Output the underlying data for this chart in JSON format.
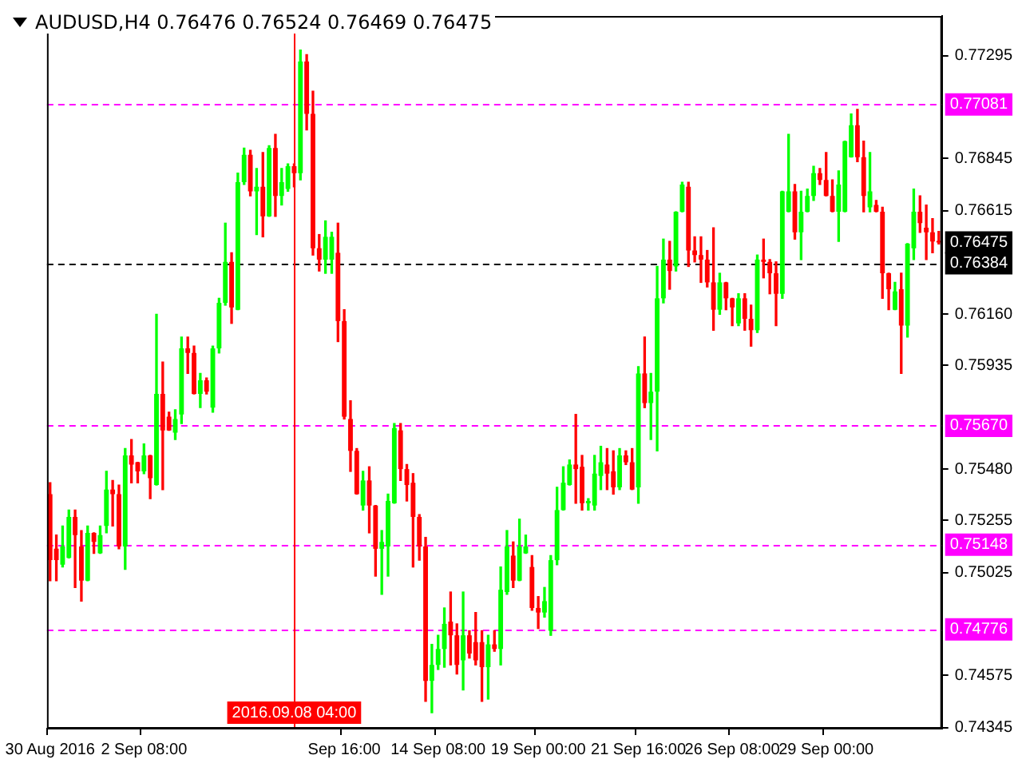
{
  "chart_data": {
    "type": "candlestick",
    "title": "AUDUSD,H4  0.76476 0.76524 0.76469 0.76475",
    "categories": [
      "30 Aug 2016",
      null,
      null,
      null,
      null,
      null,
      null,
      null,
      null,
      null,
      null,
      null,
      null,
      null,
      null,
      "2 Sep 08:00",
      null,
      null,
      null,
      null,
      null,
      null,
      null,
      null,
      null,
      null,
      null,
      null,
      null,
      null,
      null,
      null,
      null,
      null,
      null,
      null,
      null,
      null,
      null,
      "2016.09.08 04:00",
      null,
      null,
      null,
      null,
      null,
      null,
      null,
      "Sep 16:00",
      null,
      null,
      null,
      null,
      null,
      null,
      null,
      null,
      null,
      null,
      null,
      null,
      null,
      null,
      "14 Sep 08:00",
      null,
      null,
      null,
      null,
      null,
      null,
      null,
      null,
      null,
      null,
      null,
      null,
      null,
      null,
      null,
      "19 Sep 00:00",
      null,
      null,
      null,
      null,
      null,
      null,
      null,
      null,
      null,
      null,
      null,
      null,
      null,
      null,
      null,
      "21 Sep 16:00",
      null,
      null,
      null,
      null,
      null,
      null,
      null,
      null,
      null,
      null,
      null,
      null,
      null,
      null,
      "26 Sep 08:00",
      null,
      null,
      null,
      null,
      null,
      null,
      null,
      null,
      null,
      null,
      null,
      null,
      null,
      null,
      "29 Sep 00:00",
      null,
      null,
      null,
      null,
      null,
      null,
      null,
      null,
      null,
      null,
      null,
      null,
      null,
      null,
      null,
      null,
      null,
      null
    ],
    "ohlc": [
      [
        0.7537,
        0.7542,
        0.7499,
        0.7508
      ],
      [
        0.7513,
        0.7519,
        0.7499,
        0.7508
      ],
      [
        0.7506,
        0.7523,
        0.7505,
        0.7514
      ],
      [
        0.7509,
        0.753,
        0.7509,
        0.7527
      ],
      [
        0.7527,
        0.753,
        0.7496,
        0.7519
      ],
      [
        0.7514,
        0.7521,
        0.749,
        0.7499
      ],
      [
        0.7499,
        0.7523,
        0.7499,
        0.752
      ],
      [
        0.752,
        0.752,
        0.7511,
        0.7516
      ],
      [
        0.7511,
        0.7523,
        0.7511,
        0.7519
      ],
      [
        0.7523,
        0.7547,
        0.752,
        0.7539
      ],
      [
        0.7539,
        0.7543,
        0.7523,
        0.7537
      ],
      [
        0.7537,
        0.7541,
        0.7513,
        0.7514
      ],
      [
        0.7514,
        0.7557,
        0.7504,
        0.7554
      ],
      [
        0.7554,
        0.7561,
        0.7542,
        0.755
      ],
      [
        0.7551,
        0.7551,
        0.7542,
        0.7547
      ],
      [
        0.7547,
        0.7559,
        0.7546,
        0.7554
      ],
      [
        0.7554,
        0.7554,
        0.7535,
        0.7544
      ],
      [
        0.7541,
        0.7616,
        0.7541,
        0.7581
      ],
      [
        0.7581,
        0.7595,
        0.7539,
        0.7565
      ],
      [
        0.7571,
        0.7573,
        0.7565,
        0.7565
      ],
      [
        0.7564,
        0.7574,
        0.7561,
        0.757
      ],
      [
        0.7572,
        0.7606,
        0.7568,
        0.7601
      ],
      [
        0.7601,
        0.7606,
        0.759,
        0.7599
      ],
      [
        0.7599,
        0.7602,
        0.7581,
        0.7581
      ],
      [
        0.7581,
        0.759,
        0.7575,
        0.7587
      ],
      [
        0.7587,
        0.7588,
        0.7581,
        0.7582
      ],
      [
        0.7575,
        0.7602,
        0.7573,
        0.7601
      ],
      [
        0.7601,
        0.7623,
        0.7599,
        0.7621
      ],
      [
        0.7621,
        0.7656,
        0.762,
        0.7639
      ],
      [
        0.7639,
        0.7643,
        0.7612,
        0.7619
      ],
      [
        0.7618,
        0.7678,
        0.7618,
        0.7674
      ],
      [
        0.7674,
        0.7689,
        0.7673,
        0.7686
      ],
      [
        0.7686,
        0.7688,
        0.7668,
        0.767
      ],
      [
        0.767,
        0.768,
        0.7651,
        0.7672
      ],
      [
        0.7672,
        0.7687,
        0.765,
        0.7659
      ],
      [
        0.7659,
        0.769,
        0.7659,
        0.7689
      ],
      [
        0.7689,
        0.7695,
        0.7659,
        0.7668
      ],
      [
        0.7668,
        0.768,
        0.7664,
        0.7674
      ],
      [
        0.7671,
        0.7682,
        0.767,
        0.7681
      ],
      [
        0.7681,
        0.7682,
        0.7672,
        0.7678
      ],
      [
        0.7678,
        0.7732,
        0.7675,
        0.7727
      ],
      [
        0.7727,
        0.773,
        0.7697,
        0.7704
      ],
      [
        0.7704,
        0.7714,
        0.7642,
        0.7645
      ],
      [
        0.7645,
        0.7651,
        0.7635,
        0.764
      ],
      [
        0.764,
        0.7657,
        0.7634,
        0.765
      ],
      [
        0.764,
        0.7652,
        0.7634,
        0.765
      ],
      [
        0.7643,
        0.7656,
        0.7604,
        0.7613
      ],
      [
        0.7613,
        0.7618,
        0.757,
        0.7571
      ],
      [
        0.757,
        0.7578,
        0.7547,
        0.7556
      ],
      [
        0.7556,
        0.7557,
        0.7537,
        0.7537
      ],
      [
        0.7532,
        0.7547,
        0.753,
        0.7543
      ],
      [
        0.7543,
        0.7549,
        0.752,
        0.7532
      ],
      [
        0.7532,
        0.7532,
        0.7501,
        0.7513
      ],
      [
        0.7513,
        0.7521,
        0.7493,
        0.7516
      ],
      [
        0.7514,
        0.7537,
        0.7501,
        0.7534
      ],
      [
        0.7533,
        0.7568,
        0.7533,
        0.7566
      ],
      [
        0.7565,
        0.7568,
        0.7543,
        0.7548
      ],
      [
        0.7548,
        0.755,
        0.7534,
        0.7541
      ],
      [
        0.7542,
        0.7546,
        0.7505,
        0.7527
      ],
      [
        0.7527,
        0.7528,
        0.7508,
        0.7514
      ],
      [
        0.7514,
        0.7518,
        0.7446,
        0.7455
      ],
      [
        0.7455,
        0.7471,
        0.7441,
        0.7462
      ],
      [
        0.7462,
        0.7475,
        0.746,
        0.7469
      ],
      [
        0.7469,
        0.7487,
        0.7461,
        0.748
      ],
      [
        0.7481,
        0.7494,
        0.7462,
        0.7475
      ],
      [
        0.7475,
        0.748,
        0.7458,
        0.7462
      ],
      [
        0.7464,
        0.7494,
        0.7451,
        0.7475
      ],
      [
        0.7475,
        0.7477,
        0.7465,
        0.7467
      ],
      [
        0.7472,
        0.7485,
        0.7462,
        0.7464
      ],
      [
        0.7472,
        0.7477,
        0.7446,
        0.7461
      ],
      [
        0.7461,
        0.7475,
        0.7447,
        0.7471
      ],
      [
        0.7471,
        0.7477,
        0.7468,
        0.7469
      ],
      [
        0.7469,
        0.7505,
        0.7462,
        0.7495
      ],
      [
        0.7494,
        0.7521,
        0.7493,
        0.7514
      ],
      [
        0.751,
        0.7516,
        0.7496,
        0.7499
      ],
      [
        0.7499,
        0.7526,
        0.7499,
        0.7514
      ],
      [
        0.7511,
        0.7519,
        0.7511,
        0.7514
      ],
      [
        0.7505,
        0.751,
        0.7486,
        0.7487
      ],
      [
        0.7487,
        0.7492,
        0.7478,
        0.7485
      ],
      [
        0.7485,
        0.7496,
        0.7483,
        0.749
      ],
      [
        0.7477,
        0.751,
        0.7475,
        0.7508
      ],
      [
        0.7508,
        0.754,
        0.7506,
        0.753
      ],
      [
        0.753,
        0.7549,
        0.753,
        0.7542
      ],
      [
        0.7541,
        0.7552,
        0.7541,
        0.755
      ],
      [
        0.755,
        0.7572,
        0.7533,
        0.7548
      ],
      [
        0.7549,
        0.7554,
        0.753,
        0.7533
      ],
      [
        0.7533,
        0.7535,
        0.753,
        0.7534
      ],
      [
        0.7532,
        0.7554,
        0.753,
        0.7546
      ],
      [
        0.7545,
        0.7558,
        0.7539,
        0.7551
      ],
      [
        0.755,
        0.7557,
        0.7539,
        0.7546
      ],
      [
        0.7547,
        0.7556,
        0.7537,
        0.754
      ],
      [
        0.754,
        0.7557,
        0.7539,
        0.7554
      ],
      [
        0.7554,
        0.7556,
        0.755,
        0.7551
      ],
      [
        0.7551,
        0.7557,
        0.7539,
        0.7539
      ],
      [
        0.754,
        0.7593,
        0.7533,
        0.759
      ],
      [
        0.759,
        0.7606,
        0.7575,
        0.7577
      ],
      [
        0.7577,
        0.759,
        0.7561,
        0.7582
      ],
      [
        0.7582,
        0.7637,
        0.7556,
        0.7623
      ],
      [
        0.7623,
        0.7649,
        0.7621,
        0.764
      ],
      [
        0.764,
        0.7648,
        0.7627,
        0.7635
      ],
      [
        0.7637,
        0.7661,
        0.7635,
        0.7661
      ],
      [
        0.7661,
        0.7674,
        0.7661,
        0.7673
      ],
      [
        0.7672,
        0.7674,
        0.7637,
        0.7644
      ],
      [
        0.7644,
        0.765,
        0.7639,
        0.7642
      ],
      [
        0.7642,
        0.765,
        0.763,
        0.764
      ],
      [
        0.764,
        0.7644,
        0.7628,
        0.763
      ],
      [
        0.763,
        0.7654,
        0.7609,
        0.7618
      ],
      [
        0.7618,
        0.7634,
        0.7616,
        0.763
      ],
      [
        0.763,
        0.763,
        0.7618,
        0.7623
      ],
      [
        0.7623,
        0.7623,
        0.7611,
        0.7619
      ],
      [
        0.7612,
        0.7625,
        0.7611,
        0.7623
      ],
      [
        0.7623,
        0.7625,
        0.7609,
        0.7614
      ],
      [
        0.7614,
        0.762,
        0.7602,
        0.7609
      ],
      [
        0.7609,
        0.7642,
        0.7608,
        0.764
      ],
      [
        0.764,
        0.7649,
        0.7632,
        0.7639
      ],
      [
        0.7639,
        0.764,
        0.7625,
        0.7634
      ],
      [
        0.7634,
        0.7639,
        0.7611,
        0.7625
      ],
      [
        0.7625,
        0.767,
        0.7623,
        0.767
      ],
      [
        0.7661,
        0.7695,
        0.7661,
        0.767
      ],
      [
        0.767,
        0.7673,
        0.7649,
        0.7652
      ],
      [
        0.7652,
        0.767,
        0.764,
        0.7661
      ],
      [
        0.7661,
        0.7671,
        0.7661,
        0.7668
      ],
      [
        0.7668,
        0.7681,
        0.7666,
        0.7678
      ],
      [
        0.7678,
        0.768,
        0.7673,
        0.7675
      ],
      [
        0.7675,
        0.7687,
        0.7668,
        0.7668
      ],
      [
        0.7668,
        0.7675,
        0.7661,
        0.7661
      ],
      [
        0.7661,
        0.7679,
        0.7648,
        0.7673
      ],
      [
        0.7661,
        0.7692,
        0.7661,
        0.7692
      ],
      [
        0.7685,
        0.7704,
        0.7685,
        0.7699
      ],
      [
        0.7699,
        0.7706,
        0.7683,
        0.7685
      ],
      [
        0.7685,
        0.7692,
        0.7661,
        0.7668
      ],
      [
        0.7663,
        0.7687,
        0.7661,
        0.767
      ],
      [
        0.7664,
        0.7666,
        0.7661,
        0.7661
      ],
      [
        0.7661,
        0.7663,
        0.7623,
        0.7634
      ],
      [
        0.7634,
        0.7634,
        0.7618,
        0.7627
      ],
      [
        0.7618,
        0.763,
        0.7618,
        0.7626
      ],
      [
        0.7627,
        0.7634,
        0.759,
        0.7611
      ],
      [
        0.7611,
        0.7647,
        0.7606,
        0.7647
      ],
      [
        0.7645,
        0.7671,
        0.764,
        0.7661
      ],
      [
        0.7661,
        0.7668,
        0.7652,
        0.7656
      ],
      [
        0.7654,
        0.7664,
        0.764,
        0.7652
      ],
      [
        0.7652,
        0.7658,
        0.7643,
        0.7648
      ],
      [
        0.76476,
        0.76524,
        0.76469,
        0.76475
      ]
    ],
    "colors": [
      "#ff0000",
      "#ff0000",
      "#00ff00",
      "#00ff00",
      "#ff0000",
      "#ff0000",
      "#00ff00",
      "#ff0000",
      "#00ff00",
      "#00ff00",
      "#ff0000",
      "#ff0000",
      "#00ff00",
      "#ff0000",
      "#ff0000",
      "#00ff00",
      "#ff0000",
      "#00ff00",
      "#ff0000",
      "#ff0000",
      "#00ff00",
      "#00ff00",
      "#ff0000",
      "#ff0000",
      "#00ff00",
      "#ff0000",
      "#00ff00",
      "#00ff00",
      "#00ff00",
      "#ff0000",
      "#00ff00",
      "#00ff00",
      "#ff0000",
      "#00ff00",
      "#ff0000",
      "#00ff00",
      "#ff0000",
      "#00ff00",
      "#00ff00",
      "#ff0000",
      "#00ff00",
      "#ff0000",
      "#ff0000",
      "#ff0000",
      "#00ff00",
      "#00ff00",
      "#ff0000",
      "#ff0000",
      "#ff0000",
      "#ff0000",
      "#00ff00",
      "#ff0000",
      "#ff0000",
      "#00ff00",
      "#00ff00",
      "#00ff00",
      "#ff0000",
      "#ff0000",
      "#ff0000",
      "#ff0000",
      "#ff0000",
      "#00ff00",
      "#00ff00",
      "#00ff00",
      "#ff0000",
      "#ff0000",
      "#00ff00",
      "#ff0000",
      "#ff0000",
      "#ff0000",
      "#00ff00",
      "#ff0000",
      "#00ff00",
      "#00ff00",
      "#ff0000",
      "#00ff00",
      "#00ff00",
      "#ff0000",
      "#ff0000",
      "#00ff00",
      "#00ff00",
      "#00ff00",
      "#00ff00",
      "#00ff00",
      "#ff0000",
      "#ff0000",
      "#00ff00",
      "#00ff00",
      "#00ff00",
      "#ff0000",
      "#ff0000",
      "#00ff00",
      "#ff0000",
      "#ff0000",
      "#00ff00",
      "#ff0000",
      "#00ff00",
      "#00ff00",
      "#00ff00",
      "#ff0000",
      "#00ff00",
      "#00ff00",
      "#ff0000",
      "#ff0000",
      "#ff0000",
      "#ff0000",
      "#ff0000",
      "#00ff00",
      "#ff0000",
      "#ff0000",
      "#00ff00",
      "#ff0000",
      "#ff0000",
      "#00ff00",
      "#ff0000",
      "#ff0000",
      "#ff0000",
      "#00ff00",
      "#00ff00",
      "#ff0000",
      "#00ff00",
      "#00ff00",
      "#00ff00",
      "#ff0000",
      "#ff0000",
      "#ff0000",
      "#00ff00",
      "#00ff00",
      "#00ff00",
      "#ff0000",
      "#ff0000",
      "#00ff00",
      "#ff0000",
      "#ff0000",
      "#ff0000",
      "#00ff00",
      "#ff0000",
      "#00ff00",
      "#00ff00",
      "#ff0000",
      "#ff0000",
      "#ff0000",
      "#ff0000"
    ],
    "ylim": [
      0.7434,
      0.7747
    ],
    "yticks": [
      0.77295,
      0.76845,
      0.76615,
      {
        "value": 0.7616,
        "label": "0.76160"
      },
      0.75935,
      {
        "value": 0.7548,
        "label": "0.75480"
      },
      0.75255,
      0.75025,
      0.74575,
      0.74345
    ],
    "ref_lines": [
      {
        "axis": "y",
        "value": 0.77081,
        "label": "0.77081",
        "color": "#ff00ff",
        "line_style": "dashed"
      },
      {
        "axis": "y",
        "value": 0.76384,
        "label": "0.76384",
        "color": "#000000",
        "line_style": "dashed"
      },
      {
        "axis": "y",
        "value": 0.7567,
        "label": "0.75670",
        "color": "#ff00ff",
        "line_style": "dashed"
      },
      {
        "axis": "y",
        "value": 0.75148,
        "label": "0.75148",
        "color": "#ff00ff",
        "line_style": "dashed"
      },
      {
        "axis": "y",
        "value": 0.74776,
        "label": "0.74776",
        "color": "#ff00ff",
        "line_style": "dashed"
      },
      {
        "axis": "x",
        "value": "2016.09.08 04:00",
        "color": "#ff0000",
        "line_style": "solid"
      }
    ],
    "annotations": [
      "0.76475"
    ]
  }
}
